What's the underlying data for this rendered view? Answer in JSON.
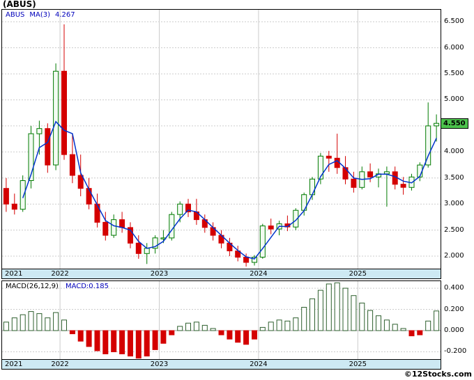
{
  "page": {
    "title": "(ABUS)",
    "footer_credit": "©12Stocks.com"
  },
  "main_chart": {
    "legend": {
      "symbol": "ABUS",
      "ma_label": "MA(3)",
      "ma_value": "4.267"
    },
    "price_tag": "4.550"
  },
  "macd_chart": {
    "legend": {
      "label": "MACD(26,12,9)",
      "value_label": "MACD:0.185"
    }
  },
  "colors": {
    "up": "#007a00",
    "up_fill": "#f2fbf2",
    "down": "#d40000",
    "ma_line": "#0033cc",
    "grid": "#cccccc",
    "zero_line": "#9a9a9a",
    "strip_bg": "#cde9f3",
    "price_tag_bg": "#4cc24c",
    "macd_pos": "#2d5f2d",
    "macd_pos_fill": "#ffffff",
    "macd_neg": "#d40000",
    "legend_blue": "#0000bb"
  },
  "chart_data": [
    {
      "type": "candlestick",
      "title": "ABUS monthly candlesticks with MA(3) overlay",
      "x": [
        "2021-06",
        "2021-07",
        "2021-08",
        "2021-09",
        "2021-10",
        "2021-11",
        "2021-12",
        "2022-01",
        "2022-02",
        "2022-03",
        "2022-04",
        "2022-05",
        "2022-06",
        "2022-07",
        "2022-08",
        "2022-09",
        "2022-10",
        "2022-11",
        "2022-12",
        "2023-01",
        "2023-02",
        "2023-03",
        "2023-04",
        "2023-05",
        "2023-06",
        "2023-07",
        "2023-08",
        "2023-09",
        "2023-10",
        "2023-11",
        "2023-12",
        "2024-01",
        "2024-02",
        "2024-03",
        "2024-04",
        "2024-05",
        "2024-06",
        "2024-07",
        "2024-08",
        "2024-09",
        "2024-10",
        "2024-11",
        "2024-12",
        "2025-01",
        "2025-02",
        "2025-03",
        "2025-04",
        "2025-05",
        "2025-06",
        "2025-07",
        "2025-08",
        "2025-09",
        "2025-10"
      ],
      "ohlc": [
        [
          3.3,
          3.5,
          2.85,
          3.0
        ],
        [
          3.0,
          3.2,
          2.8,
          2.9
        ],
        [
          2.9,
          3.55,
          2.85,
          3.45
        ],
        [
          3.45,
          4.5,
          3.3,
          4.35
        ],
        [
          4.35,
          4.6,
          3.95,
          4.45
        ],
        [
          4.45,
          4.55,
          3.6,
          3.75
        ],
        [
          3.75,
          5.7,
          3.65,
          5.55
        ],
        [
          5.55,
          6.45,
          3.85,
          3.95
        ],
        [
          3.95,
          4.35,
          3.4,
          3.55
        ],
        [
          3.55,
          3.95,
          3.15,
          3.3
        ],
        [
          3.3,
          3.5,
          2.9,
          3.0
        ],
        [
          3.0,
          3.2,
          2.55,
          2.65
        ],
        [
          2.65,
          2.85,
          2.3,
          2.4
        ],
        [
          2.4,
          2.8,
          2.35,
          2.7
        ],
        [
          2.7,
          2.85,
          2.45,
          2.55
        ],
        [
          2.55,
          2.65,
          2.15,
          2.25
        ],
        [
          2.25,
          2.4,
          1.95,
          2.05
        ],
        [
          2.05,
          2.25,
          1.85,
          2.15
        ],
        [
          2.15,
          2.4,
          2.05,
          2.35
        ],
        [
          2.35,
          2.5,
          2.25,
          2.35
        ],
        [
          2.35,
          2.85,
          2.3,
          2.8
        ],
        [
          2.8,
          3.05,
          2.65,
          3.0
        ],
        [
          3.0,
          3.1,
          2.75,
          2.85
        ],
        [
          2.85,
          3.1,
          2.6,
          2.7
        ],
        [
          2.7,
          2.8,
          2.45,
          2.55
        ],
        [
          2.55,
          2.65,
          2.3,
          2.4
        ],
        [
          2.4,
          2.5,
          2.15,
          2.25
        ],
        [
          2.25,
          2.35,
          2.0,
          2.1
        ],
        [
          2.1,
          2.2,
          1.9,
          1.98
        ],
        [
          1.98,
          2.05,
          1.8,
          1.88
        ],
        [
          1.88,
          2.02,
          1.82,
          1.98
        ],
        [
          1.98,
          2.62,
          1.95,
          2.58
        ],
        [
          2.58,
          2.72,
          2.42,
          2.52
        ],
        [
          2.52,
          2.68,
          2.4,
          2.62
        ],
        [
          2.62,
          2.78,
          2.48,
          2.56
        ],
        [
          2.56,
          2.92,
          2.5,
          2.88
        ],
        [
          2.88,
          3.22,
          2.78,
          3.18
        ],
        [
          3.18,
          3.52,
          3.08,
          3.48
        ],
        [
          3.48,
          3.98,
          3.38,
          3.92
        ],
        [
          3.92,
          4.02,
          3.62,
          3.88
        ],
        [
          3.88,
          4.35,
          3.58,
          3.7
        ],
        [
          3.7,
          3.92,
          3.38,
          3.48
        ],
        [
          3.48,
          3.62,
          3.22,
          3.32
        ],
        [
          3.32,
          3.72,
          3.28,
          3.62
        ],
        [
          3.62,
          3.78,
          3.42,
          3.52
        ],
        [
          3.52,
          3.68,
          3.32,
          3.58
        ],
        [
          3.58,
          3.72,
          2.95,
          3.62
        ],
        [
          3.62,
          3.72,
          3.28,
          3.38
        ],
        [
          3.38,
          3.52,
          3.18,
          3.32
        ],
        [
          3.32,
          3.58,
          3.26,
          3.52
        ],
        [
          3.52,
          3.8,
          3.44,
          3.75
        ],
        [
          3.75,
          4.95,
          3.7,
          4.5
        ],
        [
          4.5,
          4.72,
          4.2,
          4.55
        ]
      ],
      "overlay_line": {
        "name": "MA(3)",
        "window": 3,
        "last_value": 4.267
      },
      "last_price": 4.55,
      "ylim": [
        1.76,
        6.73
      ],
      "y_ticks": [
        6.5,
        6.0,
        5.5,
        5.0,
        4.0,
        3.5,
        3.0,
        2.5,
        2.0
      ],
      "y_gridlines": [
        6.5,
        6.0,
        5.5,
        5.0,
        4.5,
        4.0,
        3.5,
        3.0,
        2.5,
        2.0
      ],
      "x_year_ticks": [
        {
          "label": "2021",
          "month_index": 0
        },
        {
          "label": "2022",
          "month_index": 7
        },
        {
          "label": "2023",
          "month_index": 19
        },
        {
          "label": "2024",
          "month_index": 31
        },
        {
          "label": "2025",
          "month_index": 43
        }
      ]
    },
    {
      "type": "bar",
      "title": "MACD(26,12,9) histogram",
      "values": [
        0.08,
        0.12,
        0.15,
        0.18,
        0.16,
        0.12,
        0.17,
        0.1,
        -0.03,
        -0.1,
        -0.15,
        -0.19,
        -0.22,
        -0.2,
        -0.22,
        -0.24,
        -0.26,
        -0.24,
        -0.18,
        -0.12,
        -0.04,
        0.04,
        0.07,
        0.08,
        0.05,
        0.02,
        -0.04,
        -0.08,
        -0.11,
        -0.13,
        -0.08,
        0.03,
        0.08,
        0.1,
        0.09,
        0.12,
        0.22,
        0.3,
        0.38,
        0.44,
        0.45,
        0.4,
        0.33,
        0.26,
        0.19,
        0.14,
        0.1,
        0.06,
        0.02,
        -0.05,
        -0.04,
        0.09,
        0.185
      ],
      "last_value": 0.185,
      "ylim": [
        -0.269,
        0.466
      ],
      "y_ticks": [
        0.4,
        0.2,
        0.0,
        -0.2
      ],
      "zero_line": true,
      "x_year_ticks": [
        {
          "label": "2021",
          "month_index": 0
        },
        {
          "label": "2022",
          "month_index": 7
        },
        {
          "label": "2023",
          "month_index": 19
        },
        {
          "label": "2024",
          "month_index": 31
        },
        {
          "label": "2025",
          "month_index": 43
        }
      ]
    }
  ]
}
